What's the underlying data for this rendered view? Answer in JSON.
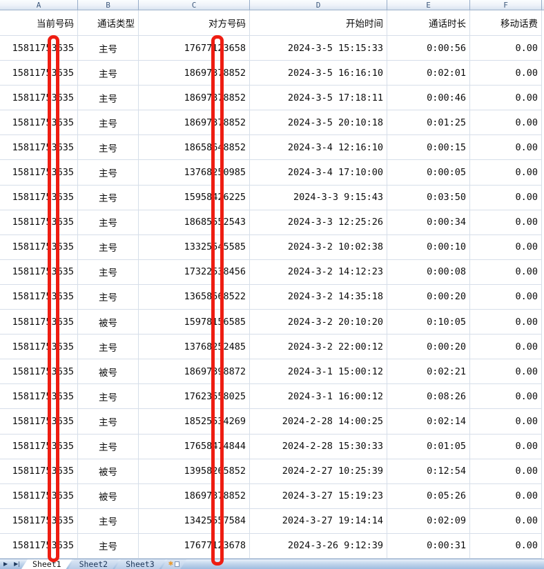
{
  "app": {
    "kind": "spreadsheet-call-log"
  },
  "column_headers": [
    "A",
    "B",
    "C",
    "D",
    "E",
    "F"
  ],
  "table": {
    "headers": [
      "当前号码",
      "通话类型",
      "对方号码",
      "开始时间",
      "通话时长",
      "移动话费"
    ],
    "rows": [
      [
        "15811753635",
        "主号",
        "17677123658",
        "2024-3-5 15:15:33",
        "0:00:56",
        "0.00"
      ],
      [
        "15811753635",
        "主号",
        "18697378852",
        "2024-3-5 16:16:10",
        "0:02:01",
        "0.00"
      ],
      [
        "15811753635",
        "主号",
        "18697378852",
        "2024-3-5 17:18:11",
        "0:00:46",
        "0.00"
      ],
      [
        "15811753635",
        "主号",
        "18697378852",
        "2024-3-5 20:10:18",
        "0:01:25",
        "0.00"
      ],
      [
        "15811753635",
        "主号",
        "18658648852",
        "2024-3-4 12:16:10",
        "0:00:15",
        "0.00"
      ],
      [
        "15811753635",
        "主号",
        "13768250985",
        "2024-3-4 17:10:00",
        "0:00:05",
        "0.00"
      ],
      [
        "15811753635",
        "主号",
        "15958426225",
        "2024-3-3 9:15:43",
        "0:03:50",
        "0.00"
      ],
      [
        "15811753635",
        "主号",
        "18685552543",
        "2024-3-3 12:25:26",
        "0:00:34",
        "0.00"
      ],
      [
        "15811753635",
        "主号",
        "13325545585",
        "2024-3-2 10:02:38",
        "0:00:10",
        "0.00"
      ],
      [
        "15811753635",
        "主号",
        "17322538456",
        "2024-3-2 14:12:23",
        "0:00:08",
        "0.00"
      ],
      [
        "15811753635",
        "主号",
        "13658568522",
        "2024-3-2 14:35:18",
        "0:00:20",
        "0.00"
      ],
      [
        "15811753635",
        "被号",
        "15978156585",
        "2024-3-2 20:10:20",
        "0:10:05",
        "0.00"
      ],
      [
        "15811753635",
        "主号",
        "13768252485",
        "2024-3-2 22:00:12",
        "0:00:20",
        "0.00"
      ],
      [
        "15811753635",
        "被号",
        "18697398872",
        "2024-3-1 15:00:12",
        "0:02:21",
        "0.00"
      ],
      [
        "15811753635",
        "主号",
        "17623558025",
        "2024-3-1 16:00:12",
        "0:08:26",
        "0.00"
      ],
      [
        "15811753635",
        "主号",
        "18525534269",
        "2024-2-28 14:00:25",
        "0:02:14",
        "0.00"
      ],
      [
        "15811753635",
        "主号",
        "17658474844",
        "2024-2-28 15:30:33",
        "0:01:05",
        "0.00"
      ],
      [
        "15811753635",
        "被号",
        "13958265852",
        "2024-2-27 10:25:39",
        "0:12:54",
        "0.00"
      ],
      [
        "15811753635",
        "被号",
        "18697378852",
        "2024-3-27 15:19:23",
        "0:05:26",
        "0.00"
      ],
      [
        "15811753635",
        "主号",
        "13425557584",
        "2024-3-27 19:14:14",
        "0:02:09",
        "0.00"
      ],
      [
        "15811753635",
        "主号",
        "17677123678",
        "2024-3-26 9:12:39",
        "0:00:31",
        "0.00"
      ]
    ]
  },
  "annotations": {
    "redaction_color": "#ee1d12",
    "bars": [
      {
        "column": "A",
        "covers": "one digit of 当前号码"
      },
      {
        "column": "C",
        "covers": "one digit of 对方号码"
      }
    ]
  },
  "sheet_tabs": {
    "active": "Sheet1",
    "tabs": [
      "Sheet1",
      "Sheet2",
      "Sheet3"
    ],
    "nav_next": "▶",
    "nav_last": "▶|"
  },
  "colors": {
    "gridline": "#d6dee9",
    "header_text": "#3f5a7d",
    "tabbar_gradient_bottom": "#9fbcdf"
  }
}
